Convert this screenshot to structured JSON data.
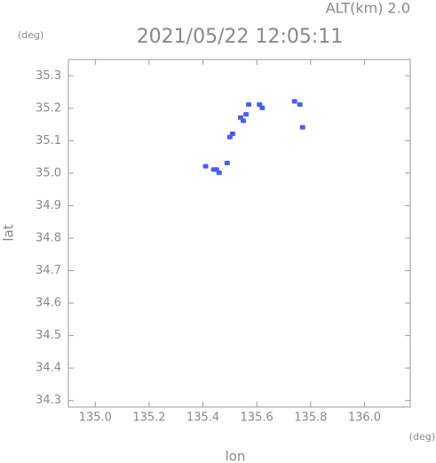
{
  "chart_data": {
    "type": "scatter",
    "title": "2021/05/22 12:05:11",
    "annotation": "ALT(km) 2.0",
    "y_unit": "(deg)",
    "x_unit": "(deg)",
    "xlabel": "lon",
    "ylabel": "lat",
    "x": [
      135.41,
      135.44,
      135.45,
      135.46,
      135.49,
      135.5,
      135.51,
      135.54,
      135.55,
      135.56,
      135.57,
      135.61,
      135.62,
      135.74,
      135.76,
      135.77
    ],
    "values": [
      35.02,
      35.01,
      35.01,
      35.0,
      35.03,
      35.11,
      35.12,
      35.17,
      35.16,
      35.18,
      35.21,
      35.21,
      35.2,
      35.22,
      35.21,
      35.14
    ],
    "color": "#4a5ef0",
    "xlim": [
      134.9,
      136.17
    ],
    "ylim": [
      34.28,
      35.35
    ],
    "xticks": [
      {
        "value": 135.0,
        "label": "135.0"
      },
      135.2,
      135.4,
      135.6,
      135.8,
      {
        "value": 136.0,
        "label": "136.0"
      }
    ],
    "yticks": [
      34.3,
      34.4,
      34.5,
      34.6,
      34.7,
      34.8,
      34.9,
      {
        "value": 35.0,
        "label": "35.0"
      },
      35.1,
      35.2,
      35.3
    ]
  }
}
